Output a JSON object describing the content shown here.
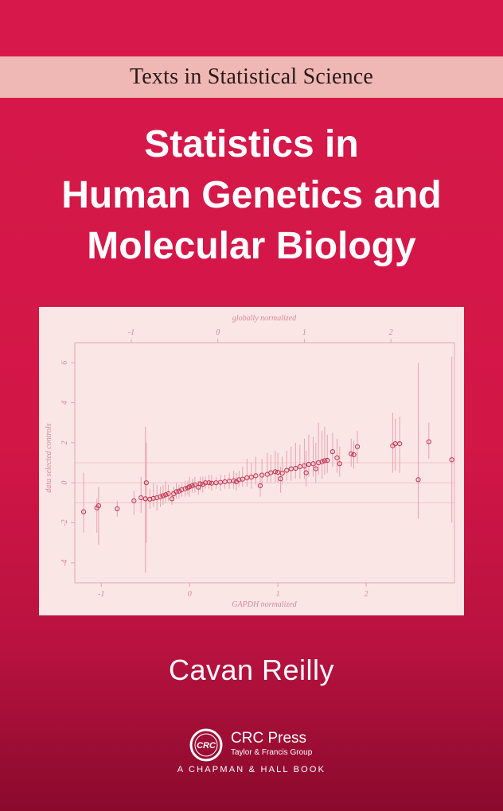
{
  "series": "Texts in Statistical Science",
  "title_lines": [
    "Statistics in",
    "Human Genetics and",
    "Molecular Biology"
  ],
  "author": "Cavan Reilly",
  "publisher": {
    "logo_text": "CRC",
    "name": "CRC Press",
    "group": "Taylor & Francis Group",
    "imprint": "A CHAPMAN & HALL BOOK"
  },
  "colors": {
    "background": "#d6194a",
    "banner": "#f0b8b4",
    "plot_background": "#fbe6e6",
    "marks": "#c0304e"
  },
  "chart_data": {
    "type": "scatter",
    "xlabel": "GAPDH normalized",
    "x2label": "globally normalized",
    "ylabel": "data selected controls",
    "xticks": [
      "-1",
      "0",
      "1",
      "2"
    ],
    "x2ticks": [
      "-1",
      "0",
      "1",
      "2"
    ],
    "yticks": [
      "-4",
      "-2",
      "0",
      "2",
      "4",
      "6"
    ],
    "xlim": [
      -1.3,
      3.0
    ],
    "ylim": [
      -5.0,
      7.0
    ],
    "reference_lines_y": [
      -1,
      0,
      1
    ],
    "points": [
      [
        -1.2,
        -1.45,
        -2.5,
        0.5
      ],
      [
        -1.05,
        -1.25,
        -2.5,
        -0.8
      ],
      [
        -1.03,
        -1.15,
        -3.1,
        -0.2
      ],
      [
        -0.82,
        -1.3,
        -1.7,
        -0.9
      ],
      [
        -0.63,
        -0.9,
        -1.6,
        -0.4
      ],
      [
        -0.55,
        -0.75,
        -1.5,
        0.3
      ],
      [
        -0.5,
        -0.8,
        -4.5,
        2.8
      ],
      [
        -0.49,
        0.0,
        -3.0,
        2.0
      ],
      [
        -0.45,
        -0.82,
        -1.3,
        -0.3
      ],
      [
        -0.41,
        -0.78,
        -1.2,
        0.0
      ],
      [
        -0.37,
        -0.75,
        -1.4,
        -0.1
      ],
      [
        -0.33,
        -0.7,
        -1.2,
        -0.2
      ],
      [
        -0.3,
        -0.65,
        -1.1,
        -0.1
      ],
      [
        -0.27,
        -0.6,
        -1.0,
        0.1
      ],
      [
        -0.24,
        -0.55,
        -0.9,
        -0.1
      ],
      [
        -0.2,
        -0.8,
        -1.1,
        -0.4
      ],
      [
        -0.18,
        -0.55,
        -0.9,
        -0.2
      ],
      [
        -0.15,
        -0.45,
        -0.8,
        0.0
      ],
      [
        -0.12,
        -0.42,
        -0.8,
        -0.1
      ],
      [
        -0.09,
        -0.35,
        -0.7,
        0.0
      ],
      [
        -0.05,
        -0.3,
        -0.7,
        0.1
      ],
      [
        -0.02,
        -0.25,
        -0.6,
        0.1
      ],
      [
        0.0,
        -0.2,
        -0.7,
        0.3
      ],
      [
        0.03,
        -0.15,
        -0.5,
        0.2
      ],
      [
        0.06,
        -0.1,
        -0.5,
        0.3
      ],
      [
        0.1,
        -0.22,
        -0.6,
        0.1
      ],
      [
        0.12,
        -0.05,
        -0.4,
        0.3
      ],
      [
        0.15,
        -0.08,
        -0.5,
        0.3
      ],
      [
        0.18,
        0.0,
        -0.3,
        0.3
      ],
      [
        0.22,
        0.0,
        -0.3,
        0.4
      ],
      [
        0.25,
        -0.02,
        -0.4,
        0.4
      ],
      [
        0.3,
        0.0,
        -0.3,
        0.3
      ],
      [
        0.35,
        0.02,
        -0.4,
        0.4
      ],
      [
        0.4,
        0.05,
        -0.3,
        0.4
      ],
      [
        0.45,
        0.08,
        -0.3,
        0.5
      ],
      [
        0.5,
        0.1,
        -0.3,
        0.6
      ],
      [
        0.53,
        0.05,
        -0.4,
        0.5
      ],
      [
        0.56,
        0.15,
        -0.2,
        0.6
      ],
      [
        0.6,
        0.18,
        -0.2,
        0.8
      ],
      [
        0.65,
        0.25,
        -0.2,
        1.2
      ],
      [
        0.7,
        0.28,
        -0.3,
        1.0
      ],
      [
        0.75,
        0.35,
        -0.1,
        1.3
      ],
      [
        0.8,
        -0.15,
        -0.7,
        0.5
      ],
      [
        0.82,
        0.38,
        -0.1,
        1.2
      ],
      [
        0.88,
        0.42,
        0.0,
        1.5
      ],
      [
        0.92,
        0.5,
        0.0,
        1.4
      ],
      [
        0.97,
        0.55,
        0.0,
        1.6
      ],
      [
        1.0,
        0.52,
        0.0,
        1.5
      ],
      [
        1.03,
        0.2,
        -0.5,
        0.8
      ],
      [
        1.05,
        0.48,
        -0.1,
        1.3
      ],
      [
        1.1,
        0.62,
        0.1,
        1.6
      ],
      [
        1.15,
        0.7,
        0.1,
        1.8
      ],
      [
        1.2,
        0.72,
        0.2,
        2.0
      ],
      [
        1.25,
        0.8,
        0.2,
        1.9
      ],
      [
        1.3,
        0.85,
        0.2,
        2.2
      ],
      [
        1.32,
        0.5,
        -0.2,
        1.6
      ],
      [
        1.35,
        0.92,
        0.3,
        2.4
      ],
      [
        1.4,
        0.95,
        0.3,
        2.3
      ],
      [
        1.43,
        0.7,
        0.0,
        2.0
      ],
      [
        1.46,
        1.0,
        0.4,
        3.0
      ],
      [
        1.5,
        1.05,
        0.2,
        2.6
      ],
      [
        1.53,
        1.1,
        0.4,
        2.8
      ],
      [
        1.56,
        1.12,
        0.5,
        2.4
      ],
      [
        1.62,
        1.55,
        0.8,
        2.5
      ],
      [
        1.67,
        1.25,
        0.5,
        2.2
      ],
      [
        1.7,
        0.95,
        0.3,
        1.8
      ],
      [
        1.83,
        1.45,
        0.8,
        2.2
      ],
      [
        1.86,
        1.4,
        0.7,
        2.1
      ],
      [
        1.9,
        1.8,
        1.0,
        2.6
      ],
      [
        2.3,
        1.85,
        0.5,
        3.5
      ],
      [
        2.33,
        1.95,
        0.6,
        3.2
      ],
      [
        2.38,
        1.95,
        0.5,
        3.3
      ],
      [
        2.59,
        0.15,
        -1.8,
        6.0
      ],
      [
        2.71,
        2.05,
        1.2,
        3.0
      ],
      [
        2.97,
        1.15,
        -2.0,
        6.3
      ]
    ],
    "point_format": [
      "x",
      "y",
      "interval_low",
      "interval_high"
    ],
    "grid": false
  }
}
